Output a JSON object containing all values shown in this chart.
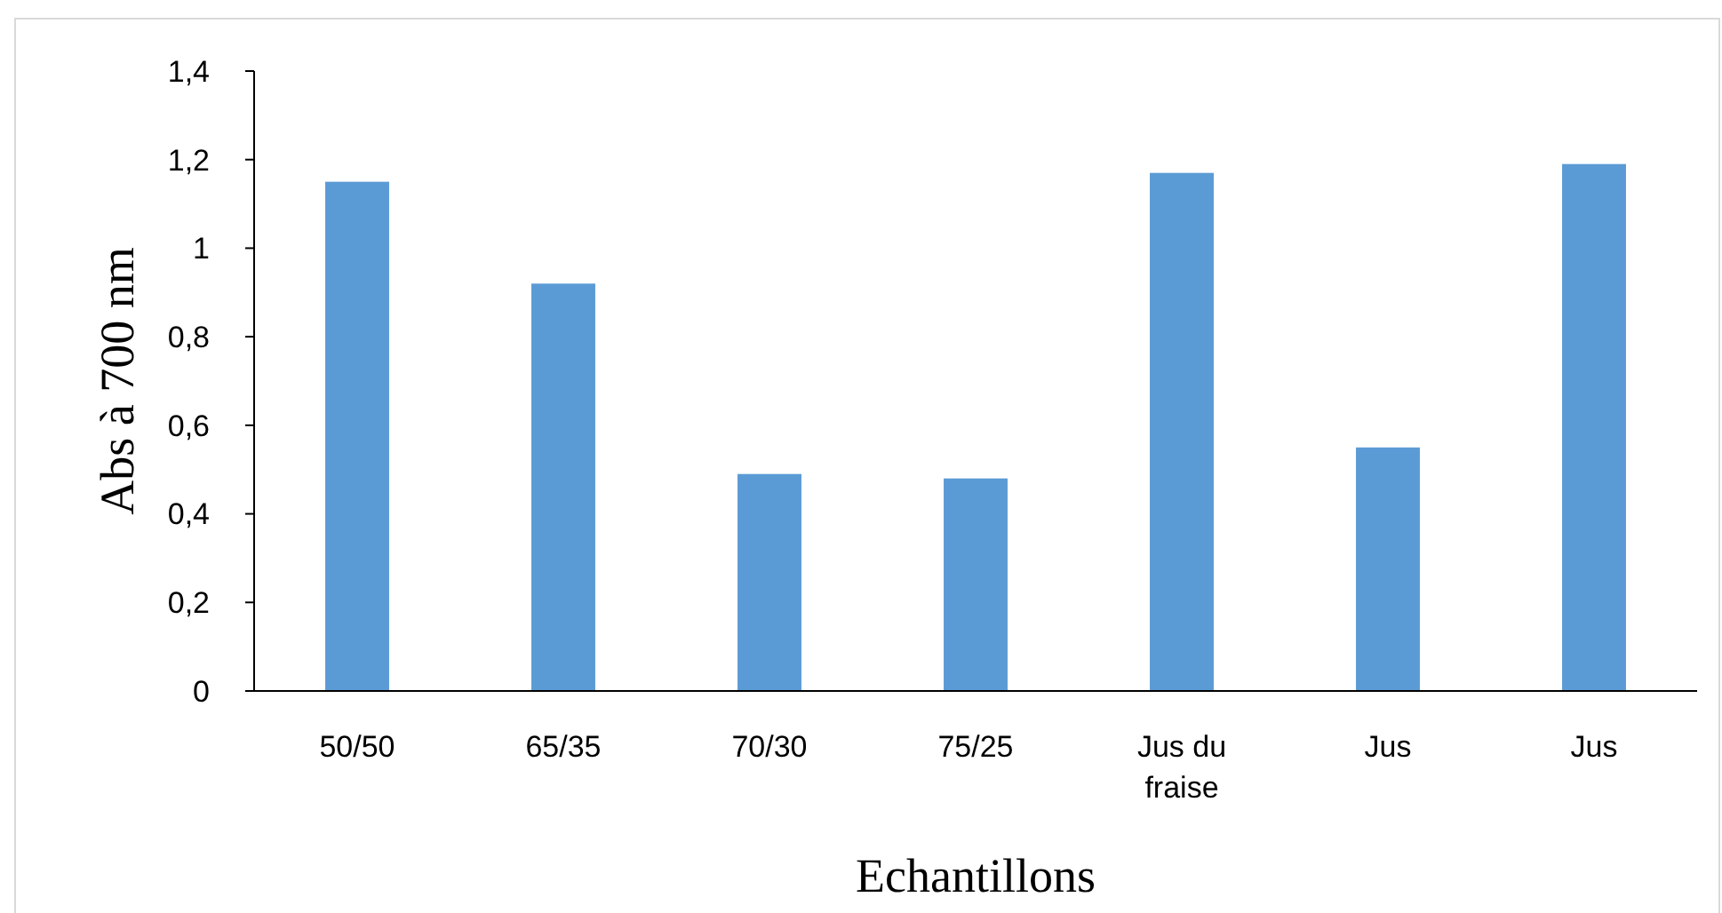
{
  "chart_data": {
    "type": "bar",
    "xlabel": "Echantillons",
    "ylabel": "Abs à 700 nm",
    "categories": [
      "50/50",
      "65/35",
      "70/30",
      "75/25",
      "Jus du fraise",
      "Jus",
      "Jus"
    ],
    "values": [
      1.15,
      0.92,
      0.49,
      0.48,
      1.17,
      0.55,
      1.19
    ],
    "color": "#5b9bd5",
    "ylim": [
      0,
      1.4
    ],
    "yticks": [
      0,
      {
        "value": 0.2,
        "label": "0,2"
      },
      {
        "value": 0.4,
        "label": "0,4"
      },
      {
        "value": 0.6,
        "label": "0,6"
      },
      {
        "value": 0.8,
        "label": "0,8"
      },
      1,
      {
        "value": 1.2,
        "label": "1,2"
      },
      {
        "value": 1.4,
        "label": "1,4"
      }
    ],
    "grid": false
  }
}
